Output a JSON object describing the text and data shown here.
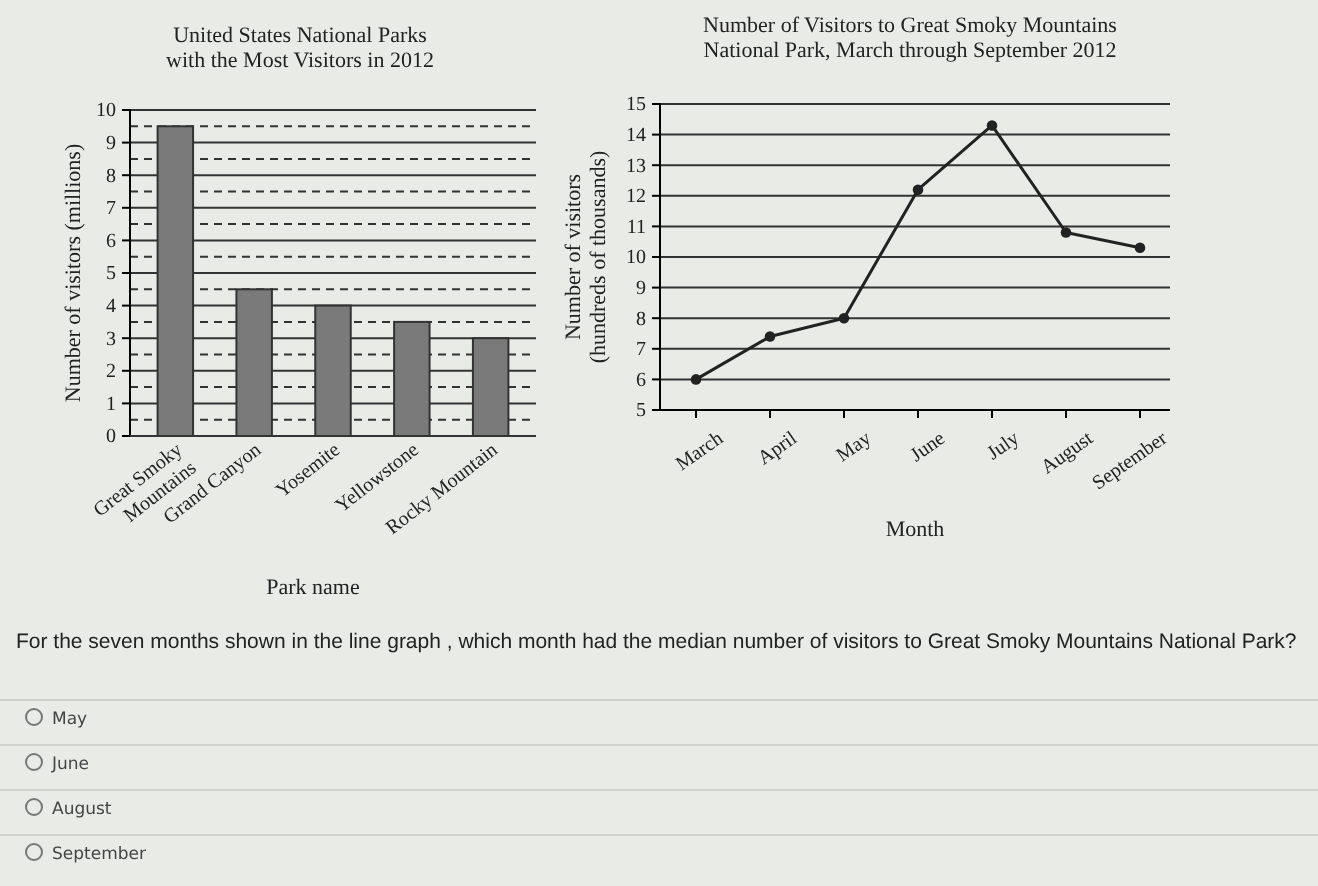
{
  "chart_data": [
    {
      "type": "bar",
      "title": "United States National Parks\nwith the Most Visitors in 2012",
      "xlabel": "Park name",
      "ylabel": "Number of visitors (millions)",
      "categories": [
        "Great Smoky\nMountains",
        "Grand Canyon",
        "Yosemite",
        "Yellowstone",
        "Rocky Mountain"
      ],
      "values": [
        9.5,
        4.5,
        4,
        3.5,
        3
      ],
      "color": "#7a7a7a",
      "ylim": [
        0,
        10
      ],
      "yticks": [
        0,
        {
          "value": 0.5,
          "label": null
        },
        1,
        {
          "value": 1.5,
          "label": null
        },
        2,
        {
          "value": 2.5,
          "label": null
        },
        3,
        {
          "value": 3.5,
          "label": null
        },
        4,
        {
          "value": 4.5,
          "label": null
        },
        5,
        {
          "value": 5.5,
          "label": null
        },
        6,
        {
          "value": 6.5,
          "label": null
        },
        7,
        {
          "value": 7.5,
          "label": null
        },
        8,
        {
          "value": 8.5,
          "label": null
        },
        9,
        {
          "value": 9.5,
          "label": null
        },
        10
      ],
      "grid": "y"
    },
    {
      "type": "line",
      "title": "Number of Visitors to Great Smoky Mountains\nNational Park, March through September 2012",
      "xlabel": "Month",
      "ylabel": "Number of visitors\n(hundreds of thousands)",
      "categories": [
        "March",
        "April",
        "May",
        "June",
        "July",
        "August",
        "September"
      ],
      "values": [
        6,
        7.4,
        8,
        12.2,
        14.3,
        10.8,
        10.3
      ],
      "color": "#222222",
      "marker": "circle",
      "line_style": "solid",
      "ylim": [
        5,
        15
      ],
      "yticks": [
        5,
        6,
        7,
        8,
        9,
        10,
        11,
        12,
        13,
        14,
        15
      ],
      "grid": "y",
      "annotations": [
        "For the seven months shown in the line graph , which month had the median number of visitors to Great Smoky Mountains National Park?",
        "May",
        "June",
        "August",
        "September"
      ]
    }
  ]
}
